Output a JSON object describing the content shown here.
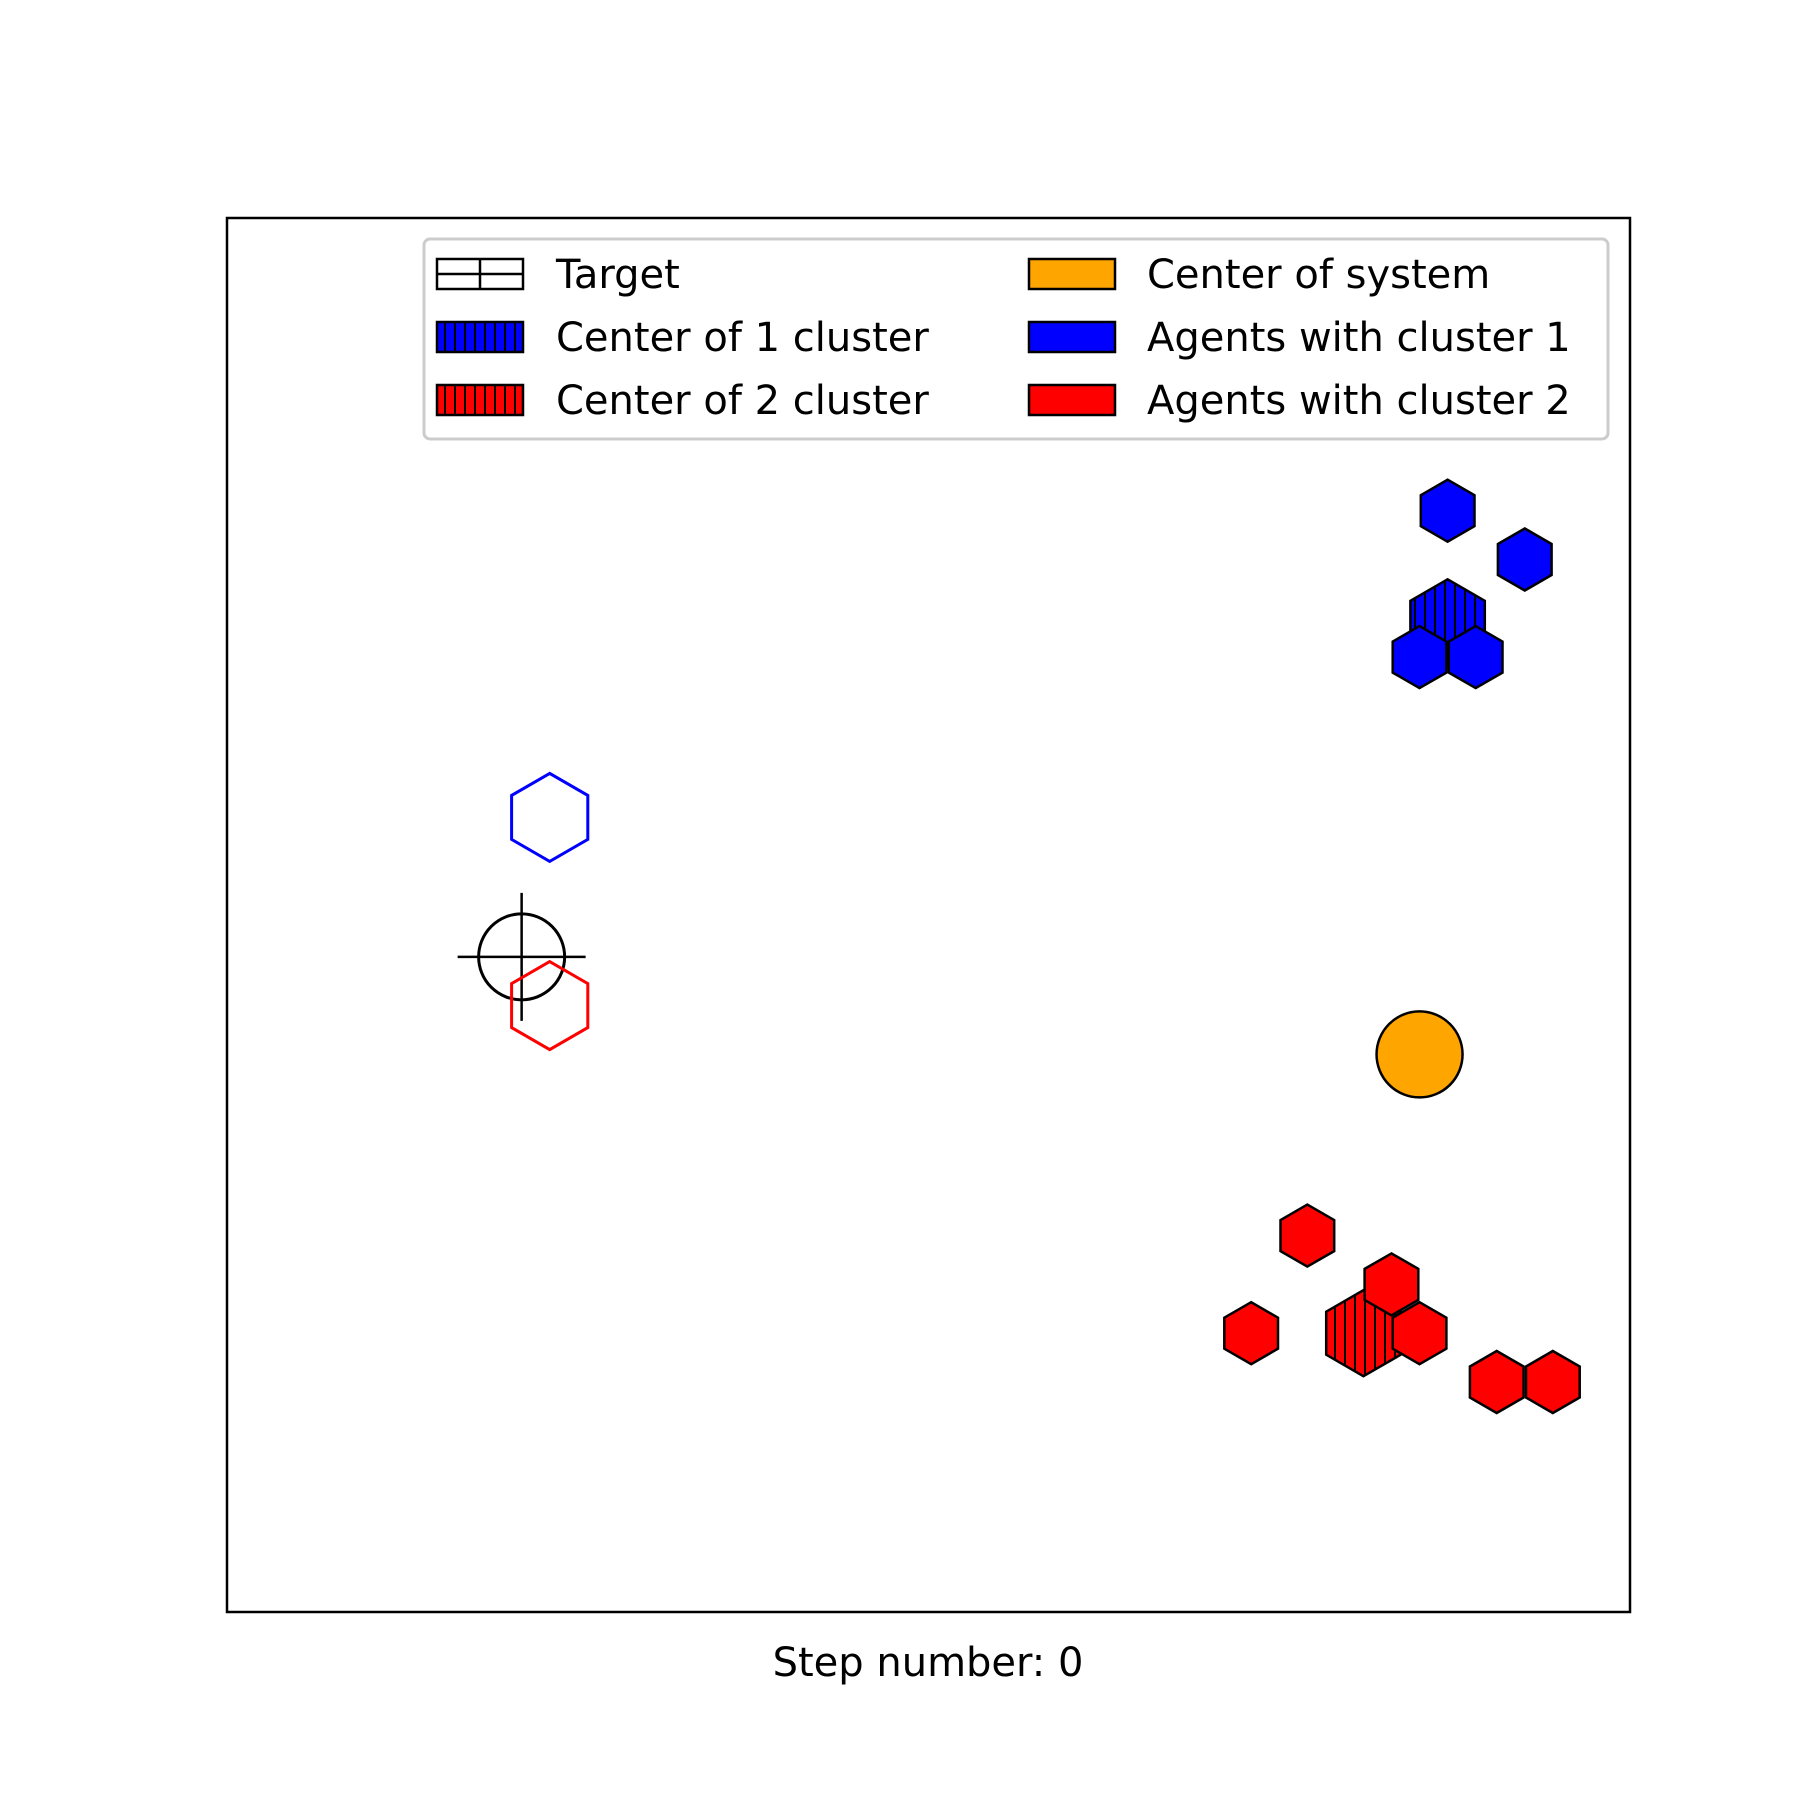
{
  "chart_data": {
    "type": "scatter",
    "title": "",
    "xlabel": "Step number: 0",
    "ylabel": "",
    "xticks": [],
    "yticks": [],
    "grid": false,
    "legend": {
      "placement": "upper-right",
      "columns": 2,
      "entries": [
        {
          "label": "Target",
          "swatch": "target"
        },
        {
          "label": "Center of 1 cluster",
          "swatch": "cluster1-center"
        },
        {
          "label": "Center of 2 cluster",
          "swatch": "cluster2-center"
        },
        {
          "label": "Center of system",
          "swatch": "system-center"
        },
        {
          "label": "Agents with cluster 1",
          "swatch": "cluster1-agents"
        },
        {
          "label": "Agents with cluster 2",
          "swatch": "cluster2-agents"
        }
      ]
    },
    "colors": {
      "cluster1": "#0000ff",
      "cluster2": "#ff0000",
      "system": "#ffa500",
      "target": "#000000"
    },
    "target": {
      "x": 2.1,
      "y": 4.7
    },
    "system_center": {
      "x": 8.5,
      "y": 4.0
    },
    "cluster1_center": {
      "x": 8.7,
      "y": 7.1
    },
    "cluster2_center": {
      "x": 8.1,
      "y": 2.0
    },
    "cluster1_goal": {
      "x": 2.3,
      "y": 5.7
    },
    "cluster2_goal": {
      "x": 2.3,
      "y": 4.35
    },
    "cluster1_agents": [
      {
        "x": 8.7,
        "y": 7.9
      },
      {
        "x": 9.25,
        "y": 7.55
      },
      {
        "x": 8.5,
        "y": 6.85
      },
      {
        "x": 8.9,
        "y": 6.85
      }
    ],
    "cluster2_agents": [
      {
        "x": 7.7,
        "y": 2.7
      },
      {
        "x": 8.3,
        "y": 2.35
      },
      {
        "x": 7.3,
        "y": 2.0
      },
      {
        "x": 8.5,
        "y": 2.0
      },
      {
        "x": 9.05,
        "y": 1.65
      },
      {
        "x": 9.45,
        "y": 1.65
      }
    ],
    "xlim": [
      0,
      10
    ],
    "ylim": [
      0,
      10
    ]
  }
}
